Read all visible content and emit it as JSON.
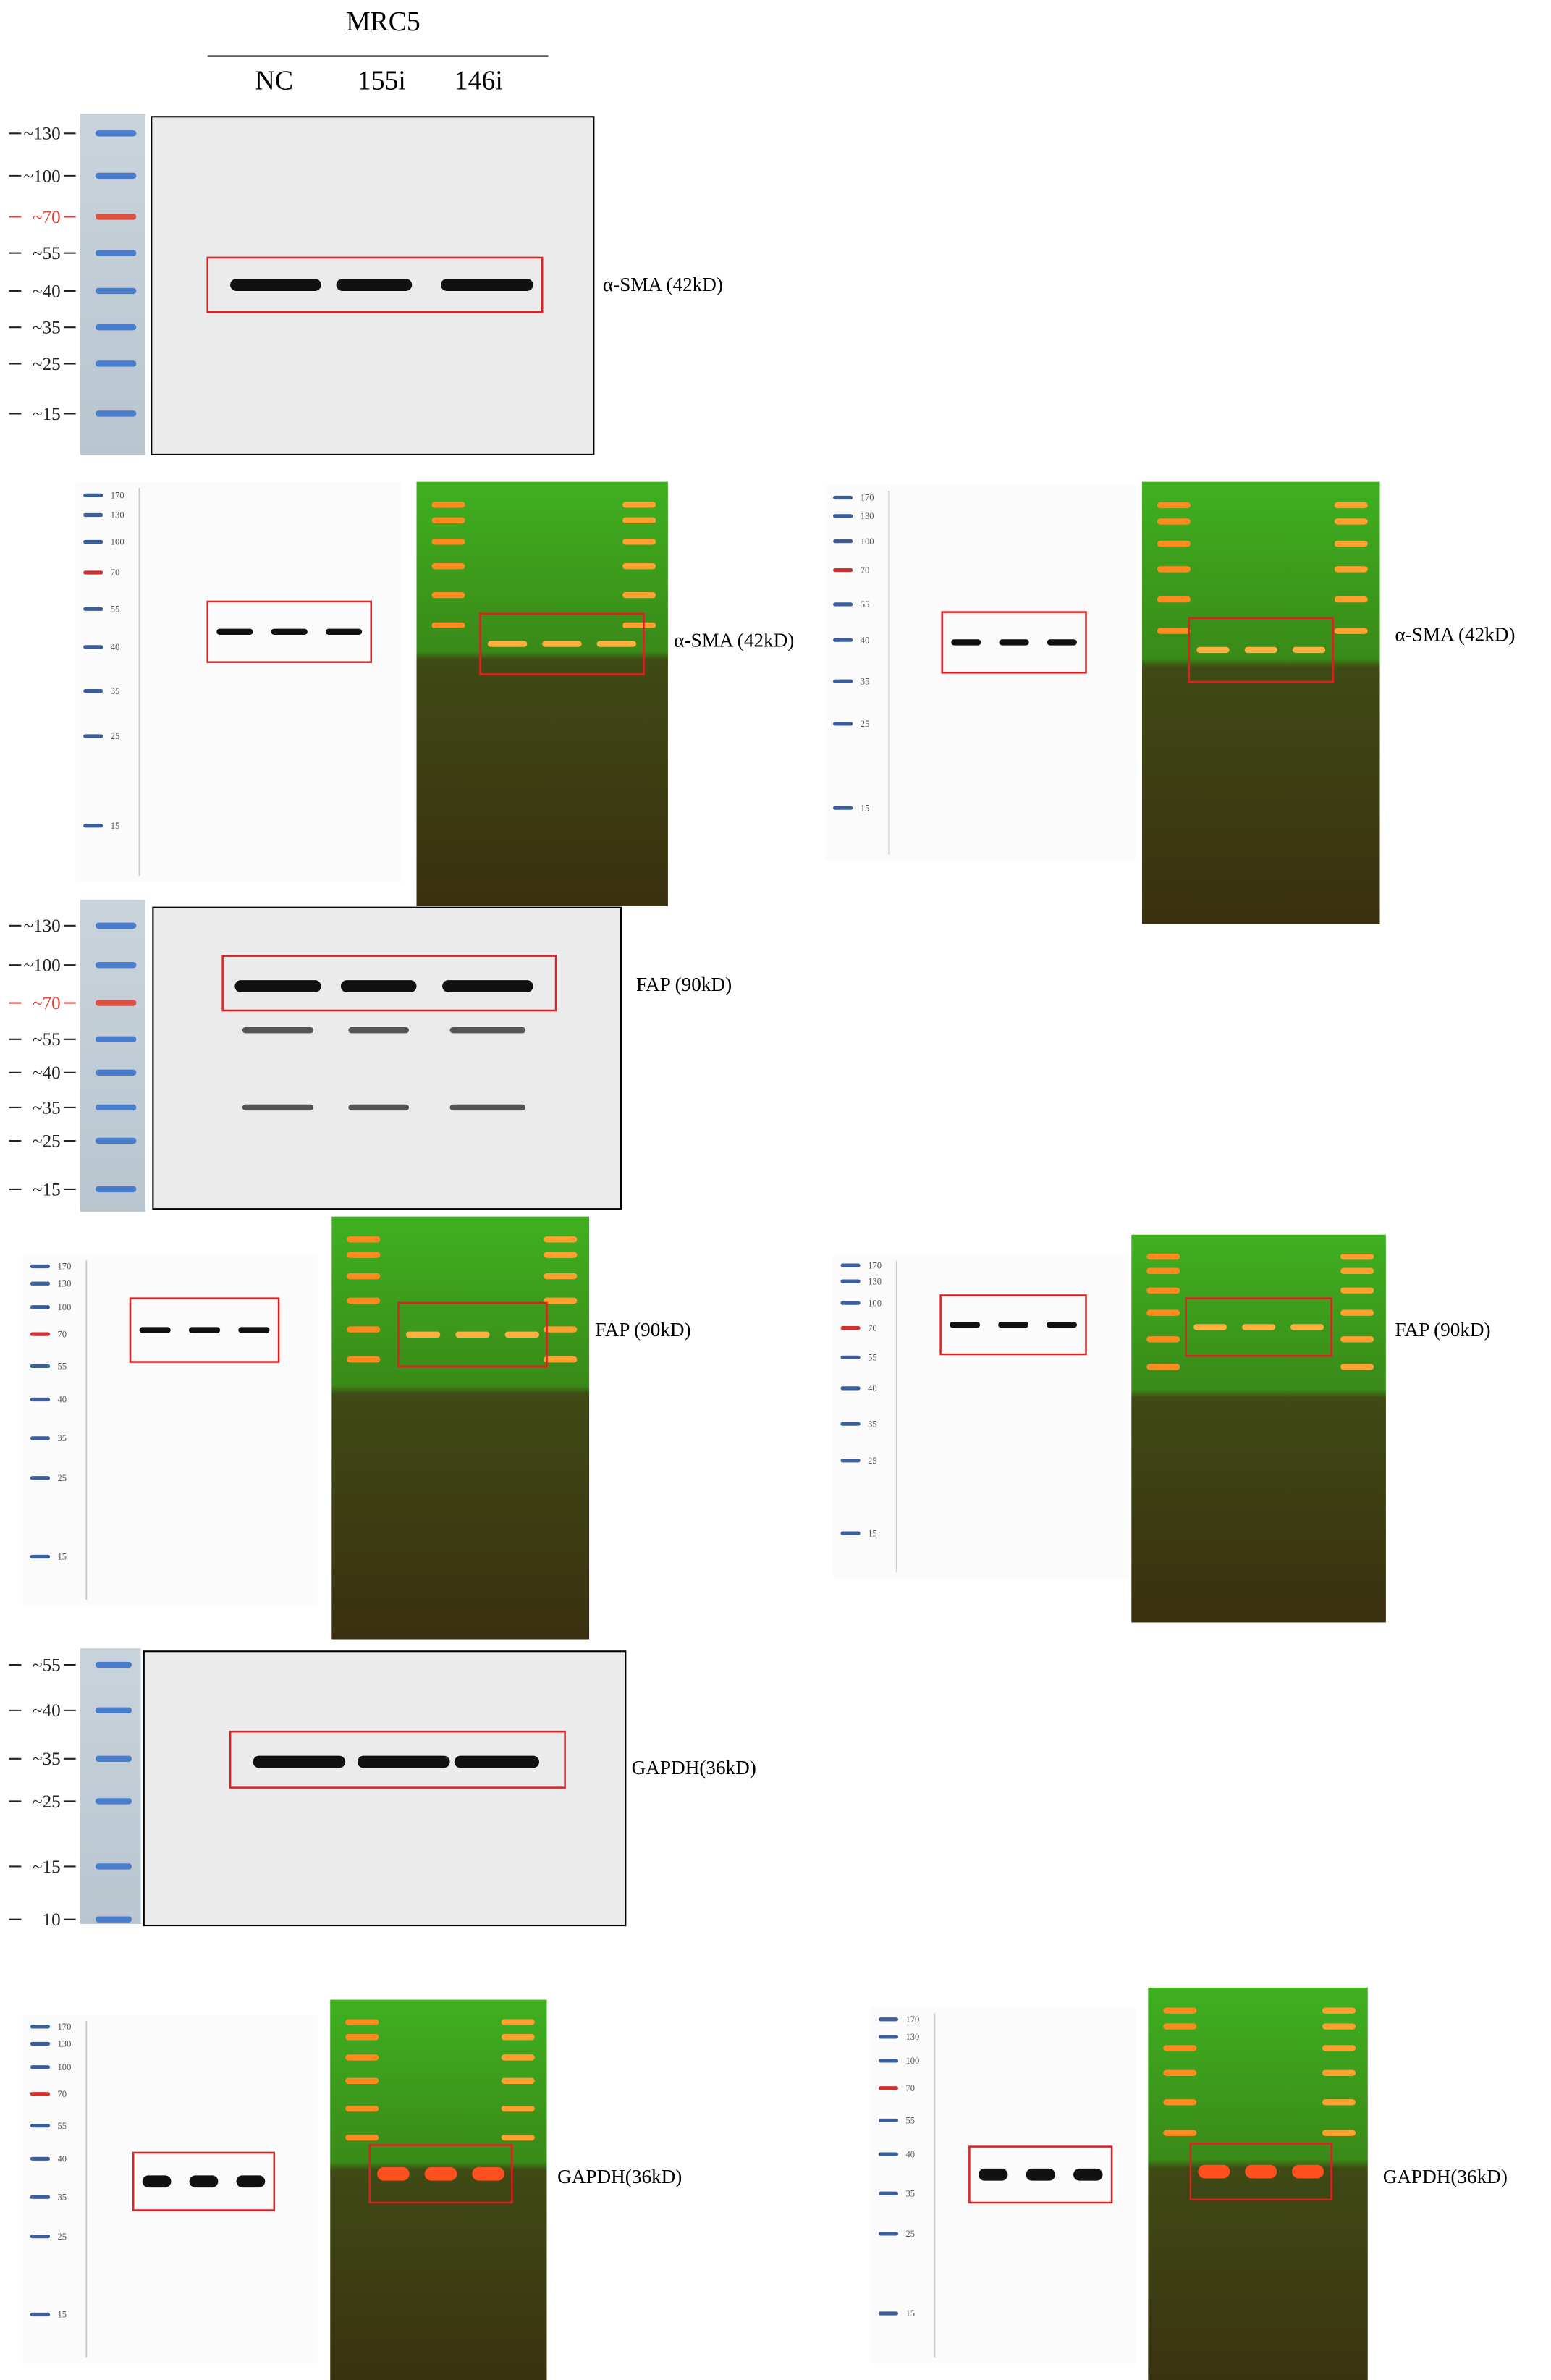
{
  "header": {
    "title": "MRC5",
    "lanes": [
      "NC",
      "155i",
      "146i"
    ]
  },
  "blots": [
    {
      "markers": [
        "~130",
        "~100",
        "~70",
        "~55",
        "~40",
        "~35",
        "~25",
        "~15"
      ],
      "label": "α-SMA (42kD)"
    },
    {
      "markers": [
        "~130",
        "~100",
        "~70",
        "~55",
        "~40",
        "~35",
        "~25",
        "~15"
      ],
      "label": "FAP (90kD)"
    },
    {
      "markers": [
        "~55",
        "~40",
        "~35",
        "~25",
        "~15",
        "10"
      ],
      "label": "GAPDH(36kD)"
    }
  ],
  "raw_ladder": [
    "170",
    "130",
    "100",
    "70",
    "55",
    "40",
    "35",
    "25",
    "15"
  ],
  "raw_rows": [
    {
      "left_label": "α-SMA (42kD)",
      "right_label": "α-SMA (42kD)"
    },
    {
      "left_label": "FAP (90kD)",
      "right_label": "FAP (90kD)"
    },
    {
      "left_label": "GAPDH(36kD)",
      "right_label": "GAPDH(36kD)"
    }
  ]
}
